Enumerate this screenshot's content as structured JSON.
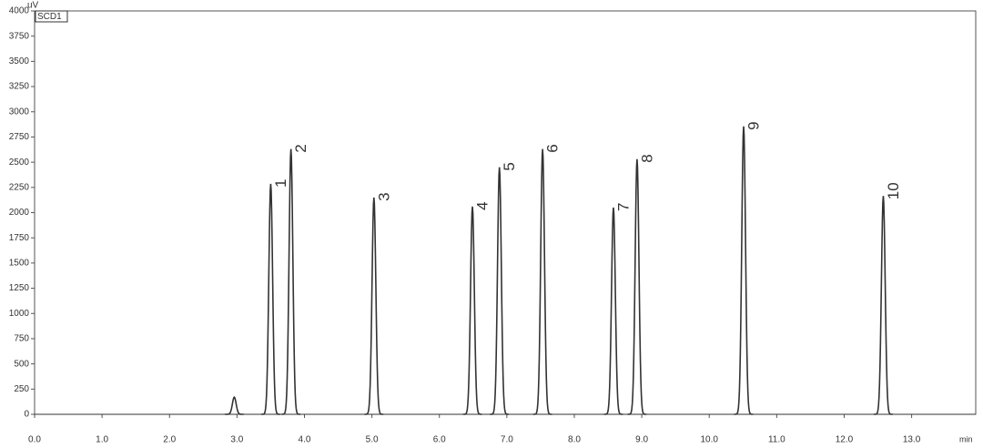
{
  "chart_data": {
    "type": "chromatogram",
    "y_unit": "uV",
    "x_unit": "min",
    "channel": "SCD1",
    "xlim": [
      0,
      13.95
    ],
    "ylim": [
      0,
      4000
    ],
    "xticks": [
      {
        "value": 0,
        "label": "0.0"
      },
      {
        "value": 1,
        "label": "1.0"
      },
      {
        "value": 2,
        "label": "2.0"
      },
      {
        "value": 3,
        "label": "3.0"
      },
      {
        "value": 4,
        "label": "4.0"
      },
      {
        "value": 5,
        "label": "5.0"
      },
      {
        "value": 6,
        "label": "6.0"
      },
      {
        "value": 7,
        "label": "7.0"
      },
      {
        "value": 8,
        "label": "8.0"
      },
      {
        "value": 9,
        "label": "9.0"
      },
      {
        "value": 10,
        "label": "10.0"
      },
      {
        "value": 11,
        "label": "11.0"
      },
      {
        "value": 12,
        "label": "12.0"
      },
      {
        "value": 13,
        "label": "13.0"
      }
    ],
    "yticks": [
      0,
      250,
      500,
      750,
      1000,
      1250,
      1500,
      1750,
      2000,
      2250,
      2500,
      2750,
      3000,
      3250,
      3500,
      3750,
      4000
    ],
    "color": "#333333",
    "peaks": {
      "x": [
        2.96,
        3.5,
        3.8,
        5.03,
        6.49,
        6.89,
        7.53,
        8.58,
        8.93,
        10.51,
        12.58
      ],
      "values": [
        170,
        2285,
        2630,
        2150,
        2060,
        2450,
        2630,
        2050,
        2530,
        2855,
        2165
      ],
      "labels": [
        null,
        "1",
        "2",
        "3",
        "4",
        "5",
        "6",
        "7",
        "8",
        "9",
        "10"
      ]
    }
  }
}
